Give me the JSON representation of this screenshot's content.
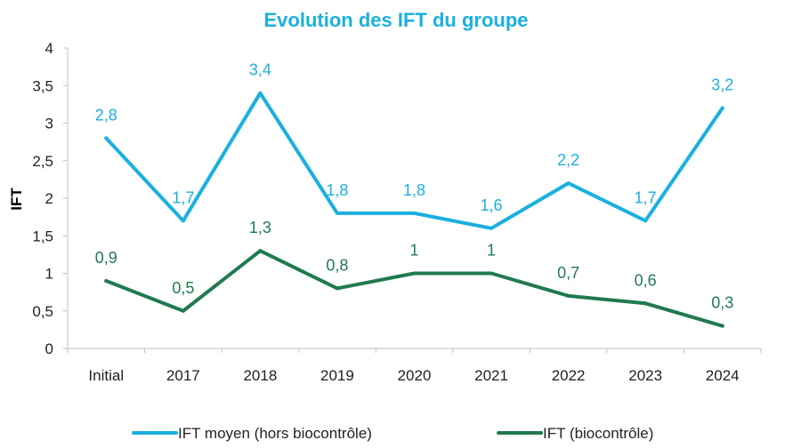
{
  "chart_data": {
    "type": "line",
    "title": "Evolution des IFT du groupe",
    "xlabel": "",
    "ylabel": "IFT",
    "ylim": [
      0,
      4
    ],
    "yticks": [
      "0",
      "0,5",
      "1",
      "1,5",
      "2",
      "2,5",
      "3",
      "3,5",
      "4"
    ],
    "categories": [
      "Initial",
      "2017",
      "2018",
      "2019",
      "2020",
      "2021",
      "2022",
      "2023",
      "2024"
    ],
    "grid": false,
    "legend_position": "bottom",
    "series": [
      {
        "name": "IFT moyen (hors biocontrôle)",
        "color": "#1ab0e0",
        "values": [
          2.8,
          1.7,
          3.4,
          1.8,
          1.8,
          1.6,
          2.2,
          1.7,
          3.2
        ],
        "labels": [
          "2,8",
          "1,7",
          "3,4",
          "1,8",
          "1,8",
          "1,6",
          "2,2",
          "1,7",
          "3,2"
        ]
      },
      {
        "name": "IFT (biocontrôle)",
        "color": "#1f7a4f",
        "values": [
          0.9,
          0.5,
          1.3,
          0.8,
          1.0,
          1.0,
          0.7,
          0.6,
          0.3
        ],
        "labels": [
          "0,9",
          "0,5",
          "1,3",
          "0,8",
          "1",
          "1",
          "0,7",
          "0,6",
          "0,3"
        ]
      }
    ]
  }
}
